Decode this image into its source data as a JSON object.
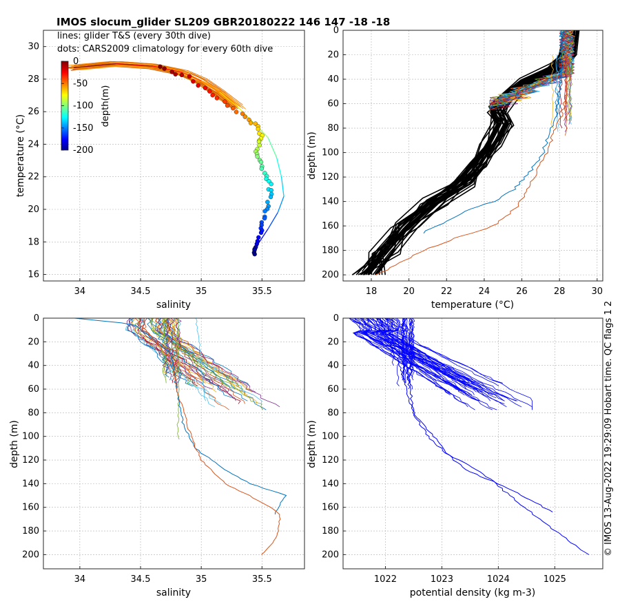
{
  "title": "IMOS slocum_glider SL209 GBR20180222 146  147  -18  -18",
  "annotation_lines": "lines: glider T&S (every 30th dive)",
  "annotation_dots": "dots: CARS2009 climatology for every 60th dive",
  "side_text": "© IMOS 13-Aug-2022 19:29:09 Hobart time. QC flags 1  2",
  "colors": {
    "profile_palette": [
      "#0072BD",
      "#D95319",
      "#EDB120",
      "#7E2F8E",
      "#77AC30",
      "#4DBEEE",
      "#A2142F"
    ],
    "clim_profile": "#000000",
    "density_profile": "#0000ff",
    "grid": "#b0b0b0"
  },
  "chart_data": [
    {
      "type": "scatter",
      "panel": "ts",
      "xlabel": "salinity",
      "ylabel": "temperature (°C)",
      "xlim": [
        33.7,
        35.85
      ],
      "ylim": [
        15.6,
        31
      ],
      "xticks": [
        34,
        34.5,
        35,
        35.5
      ],
      "yticks": [
        16,
        18,
        20,
        22,
        24,
        26,
        28,
        30
      ],
      "grid": true,
      "colorbar": {
        "label": "depth(m)",
        "ticks": [
          0,
          -50,
          -100,
          -150,
          -200
        ],
        "colormap": "jet",
        "range": [
          -200,
          0
        ],
        "location": "top-left"
      },
      "glider_ts_path": [
        [
          33.95,
          28.7
        ],
        [
          34.3,
          28.95
        ],
        [
          34.6,
          28.8
        ],
        [
          34.85,
          28.4
        ],
        [
          35.0,
          27.9
        ],
        [
          35.15,
          27.2
        ],
        [
          35.3,
          26.3
        ],
        [
          35.42,
          25.4
        ],
        [
          35.55,
          24.4
        ],
        [
          35.62,
          23.2
        ],
        [
          35.66,
          22.0
        ],
        [
          35.68,
          20.8
        ],
        [
          35.63,
          19.8
        ],
        [
          35.55,
          18.8
        ],
        [
          35.47,
          17.9
        ],
        [
          35.44,
          17.2
        ]
      ],
      "clim_ts_path": [
        [
          34.65,
          28.7
        ],
        [
          34.9,
          28.1
        ],
        [
          35.1,
          27.0
        ],
        [
          35.3,
          26.0
        ],
        [
          35.45,
          25.2
        ],
        [
          35.5,
          24.4
        ],
        [
          35.45,
          23.6
        ],
        [
          35.5,
          22.7
        ],
        [
          35.56,
          21.7
        ],
        [
          35.57,
          20.7
        ],
        [
          35.52,
          19.6
        ],
        [
          35.5,
          18.7
        ],
        [
          35.46,
          17.7
        ],
        [
          35.42,
          17.1
        ]
      ]
    },
    {
      "type": "line",
      "panel": "depth-temperature",
      "xlabel": "temperature (°C)",
      "ylabel": "depth (m)",
      "xlim": [
        16.5,
        30.3
      ],
      "ylim": [
        0,
        205
      ],
      "xticks": [
        18,
        20,
        22,
        24,
        26,
        28,
        30
      ],
      "yticks": [
        0,
        20,
        40,
        60,
        80,
        100,
        120,
        140,
        160,
        180,
        200
      ],
      "reversed_y": true,
      "grid": true,
      "clim_profile": [
        [
          28.6,
          0
        ],
        [
          28.4,
          20
        ],
        [
          27.8,
          30
        ],
        [
          26.2,
          42
        ],
        [
          25.1,
          55
        ],
        [
          24.6,
          65
        ],
        [
          24.9,
          75
        ],
        [
          24.3,
          92
        ],
        [
          23.6,
          110
        ],
        [
          22.8,
          125
        ],
        [
          21.2,
          140
        ],
        [
          19.8,
          160
        ],
        [
          18.7,
          180
        ],
        [
          17.7,
          200
        ]
      ],
      "glider_profiles": [
        {
          "color_index": 0,
          "points": [
            [
              28.1,
              0
            ],
            [
              28.1,
              40
            ],
            [
              27.8,
              70
            ],
            [
              27.1,
              100
            ],
            [
              26.5,
              115
            ],
            [
              25.6,
              130
            ],
            [
              24.5,
              140
            ],
            [
              23.0,
              148
            ],
            [
              21.5,
              160
            ],
            [
              20.7,
              166
            ]
          ]
        },
        {
          "color_index": 1,
          "points": [
            [
              28.3,
              0
            ],
            [
              28.5,
              40
            ],
            [
              28.1,
              70
            ],
            [
              27.3,
              100
            ],
            [
              26.5,
              125
            ],
            [
              25.7,
              145
            ],
            [
              24.5,
              160
            ],
            [
              22.8,
              168
            ],
            [
              20.8,
              180
            ],
            [
              19.3,
              192
            ],
            [
              18.3,
              200
            ]
          ]
        }
      ]
    },
    {
      "type": "line",
      "panel": "depth-salinity",
      "xlabel": "salinity",
      "ylabel": "depth (m)",
      "xlim": [
        33.7,
        35.85
      ],
      "ylim": [
        0,
        212
      ],
      "xticks": [
        34,
        34.5,
        35,
        35.5
      ],
      "yticks": [
        0,
        20,
        40,
        60,
        80,
        100,
        120,
        140,
        160,
        180,
        200
      ],
      "reversed_y": true,
      "grid": true,
      "glider_profiles": [
        {
          "color_index": 0,
          "points": [
            [
              33.95,
              0
            ],
            [
              34.45,
              5
            ],
            [
              34.75,
              30
            ],
            [
              34.8,
              60
            ],
            [
              34.85,
              90
            ],
            [
              34.95,
              110
            ],
            [
              35.15,
              125
            ],
            [
              35.4,
              140
            ],
            [
              35.7,
              150
            ],
            [
              35.63,
              160
            ],
            [
              35.6,
              166
            ]
          ]
        },
        {
          "color_index": 1,
          "points": [
            [
              34.45,
              0
            ],
            [
              34.75,
              35
            ],
            [
              34.8,
              60
            ],
            [
              34.9,
              95
            ],
            [
              35.0,
              120
            ],
            [
              35.2,
              140
            ],
            [
              35.45,
              153
            ],
            [
              35.65,
              165
            ],
            [
              35.63,
              182
            ],
            [
              35.55,
              195
            ],
            [
              35.5,
              200
            ]
          ]
        }
      ]
    },
    {
      "type": "line",
      "panel": "depth-density",
      "xlabel": "potential density (kg m-3)",
      "ylabel": "depth (m)",
      "xlim": [
        1021.25,
        1025.85
      ],
      "ylim": [
        0,
        212
      ],
      "xticks": [
        1022,
        1023,
        1024,
        1025
      ],
      "yticks": [
        0,
        20,
        40,
        60,
        80,
        100,
        120,
        140,
        160,
        180,
        200
      ],
      "reversed_y": true,
      "grid": true,
      "glider_profiles": [
        {
          "color_index": 0,
          "points": [
            [
              1021.35,
              0
            ],
            [
              1022.1,
              15
            ],
            [
              1022.4,
              50
            ],
            [
              1022.5,
              80
            ],
            [
              1022.85,
              100
            ],
            [
              1023.2,
              120
            ],
            [
              1023.5,
              130
            ],
            [
              1024.0,
              140
            ],
            [
              1024.5,
              152
            ],
            [
              1025.0,
              165
            ]
          ]
        },
        {
          "color_index": 0,
          "points": [
            [
              1021.9,
              0
            ],
            [
              1022.25,
              40
            ],
            [
              1022.5,
              80
            ],
            [
              1022.75,
              100
            ],
            [
              1023.1,
              115
            ],
            [
              1023.7,
              130
            ],
            [
              1024.2,
              150
            ],
            [
              1024.6,
              165
            ],
            [
              1025.0,
              180
            ],
            [
              1025.6,
              200
            ]
          ]
        }
      ]
    }
  ]
}
